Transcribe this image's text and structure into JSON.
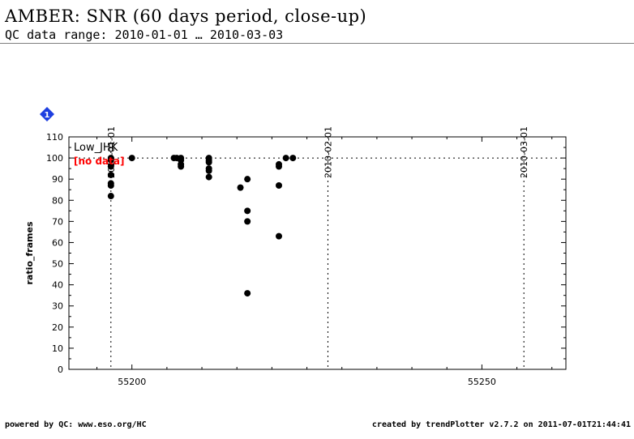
{
  "header": {
    "title": "AMBER: SNR (60 days period, close-up)",
    "subtitle": "QC data range: 2010-01-01 … 2010-03-03"
  },
  "footer": {
    "left": "powered by QC: www.eso.org/HC",
    "right": "created by trendPlotter v2.7.2 on 2011-07-01T21:44:41"
  },
  "badge": {
    "label": "1",
    "color": "#1e3fe0"
  },
  "chart_data": {
    "type": "scatter",
    "ylabel": "ratio_frames",
    "xlim": [
      55191,
      55262
    ],
    "ylim": [
      0,
      110
    ],
    "yticks": [
      0,
      10,
      20,
      30,
      40,
      50,
      60,
      70,
      80,
      90,
      100,
      110
    ],
    "xticks": [
      55200,
      55250
    ],
    "reference_line_y": 100,
    "date_markers": [
      {
        "label": "2010-01-01",
        "x": 55197
      },
      {
        "label": "2010-02-01",
        "x": 55228
      },
      {
        "label": "2010-03-01",
        "x": 55256
      }
    ],
    "panel_label": "Low_JHK",
    "note": "[no data]",
    "note_color": "#ff0000",
    "point_color": "#000000",
    "points": [
      [
        55197,
        100
      ],
      [
        55197,
        99
      ],
      [
        55197,
        96
      ],
      [
        55197,
        92
      ],
      [
        55197,
        88
      ],
      [
        55197,
        87
      ],
      [
        55197,
        82
      ],
      [
        55200,
        100
      ],
      [
        55206,
        100
      ],
      [
        55206.4,
        100
      ],
      [
        55207,
        100
      ],
      [
        55207,
        99
      ],
      [
        55207,
        97
      ],
      [
        55207,
        96
      ],
      [
        55211,
        100
      ],
      [
        55211,
        99
      ],
      [
        55211,
        98
      ],
      [
        55211,
        95
      ],
      [
        55211,
        94
      ],
      [
        55211,
        91
      ],
      [
        55215.5,
        86
      ],
      [
        55216.5,
        90
      ],
      [
        55216.5,
        75
      ],
      [
        55216.5,
        70
      ],
      [
        55216.5,
        36
      ],
      [
        55221,
        97
      ],
      [
        55221,
        96
      ],
      [
        55221,
        87
      ],
      [
        55221,
        63
      ],
      [
        55222,
        100
      ],
      [
        55223,
        100
      ]
    ]
  }
}
